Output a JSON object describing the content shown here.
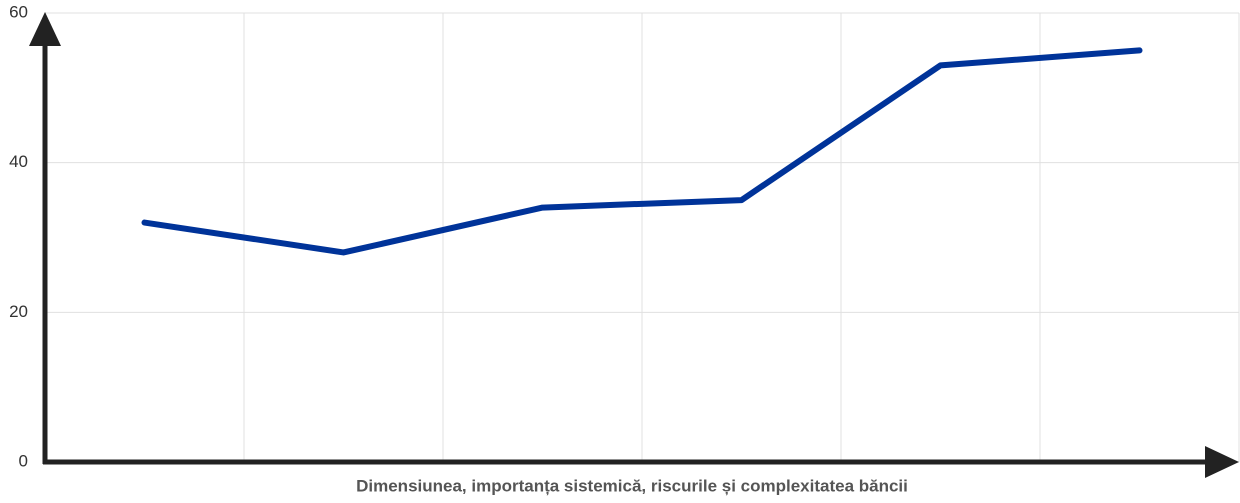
{
  "chart_data": {
    "type": "line",
    "x_label": "Dimensiunea, importanța sistemică, riscurile și complexitatea băncii",
    "categories": [
      null,
      null,
      null,
      null,
      null,
      null
    ],
    "series": [
      {
        "color": "#003399",
        "values": [
          32,
          28,
          34,
          35,
          53,
          55
        ]
      }
    ],
    "ylim": [
      0,
      60
    ],
    "yticks": [
      0,
      20,
      40,
      60
    ],
    "grid": true
  }
}
